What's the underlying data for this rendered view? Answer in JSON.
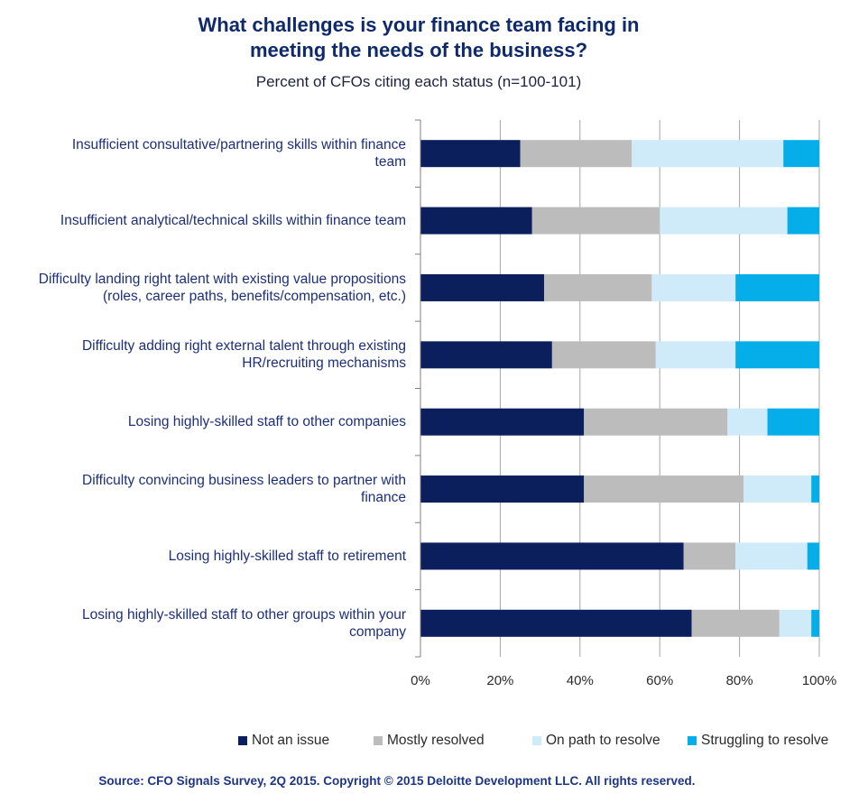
{
  "title_line1": "What challenges is your finance team facing in",
  "title_line2": "meeting the needs of the business?",
  "subtitle": "Percent of CFOs citing each status (n=100-101)",
  "source": "Source: CFO Signals Survey, 2Q 2015.  Copyright © 2015 Deloitte Development LLC. All rights reserved.",
  "colors": {
    "not_an_issue": "#0a1f5c",
    "mostly_resolved": "#bcbcbc",
    "on_path": "#cfeaf9",
    "struggling": "#05aee8",
    "grid": "#a6a6a6"
  },
  "chart_data": {
    "type": "bar",
    "orientation": "horizontal",
    "stacked": true,
    "percent_stacked": true,
    "categories": [
      [
        "Insufficient consultative/partnering skills within finance",
        "team"
      ],
      [
        "Insufficient analytical/technical skills within finance team"
      ],
      [
        "Difficulty landing right talent with existing value propositions",
        "(roles, career paths, benefits/compensation, etc.)"
      ],
      [
        "Difficulty adding right external talent through existing",
        "HR/recruiting mechanisms"
      ],
      [
        "Losing highly-skilled staff to other companies"
      ],
      [
        "Difficulty convincing business leaders to partner with",
        "finance"
      ],
      [
        "Losing highly-skilled staff to retirement"
      ],
      [
        "Losing highly-skilled staff to other groups within your",
        "company"
      ]
    ],
    "series": [
      {
        "name": "Not an issue",
        "color_key": "not_an_issue",
        "values": [
          25,
          28,
          31,
          33,
          41,
          41,
          66,
          68
        ]
      },
      {
        "name": "Mostly resolved",
        "color_key": "mostly_resolved",
        "values": [
          28,
          32,
          27,
          26,
          36,
          40,
          13,
          22
        ]
      },
      {
        "name": "On path to resolve",
        "color_key": "on_path",
        "values": [
          38,
          32,
          21,
          20,
          10,
          17,
          18,
          8
        ]
      },
      {
        "name": "Struggling to resolve",
        "color_key": "struggling",
        "values": [
          9,
          8,
          21,
          21,
          13,
          2,
          3,
          2
        ]
      }
    ],
    "xlim": [
      0,
      100
    ],
    "xticks": [
      "0%",
      "20%",
      "40%",
      "60%",
      "80%",
      "100%"
    ],
    "grid": "vertical",
    "legend_position": "bottom"
  }
}
